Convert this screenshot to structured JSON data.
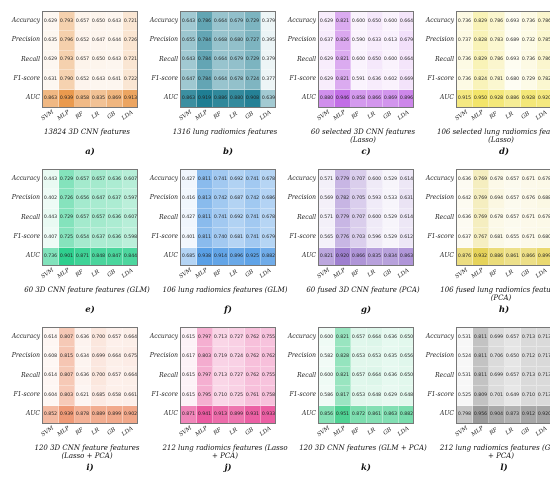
{
  "chart_data": {
    "type": "heatmap",
    "rows": [
      "Accuracy",
      "Precision",
      "Recall",
      "F1-score",
      "AUC"
    ],
    "columns": [
      "SVM",
      "MLP",
      "RF",
      "LR",
      "GB",
      "LDA"
    ],
    "panels": [
      {
        "id": "a",
        "letter": "a)",
        "caption": "13824 3D CNN features",
        "color": "#ea9a4e",
        "values": [
          [
            0.629,
            0.793,
            0.657,
            0.65,
            0.643,
            0.721
          ],
          [
            0.635,
            0.796,
            0.652,
            0.647,
            0.644,
            0.726
          ],
          [
            0.629,
            0.793,
            0.657,
            0.65,
            0.643,
            0.721
          ],
          [
            0.631,
            0.79,
            0.652,
            0.643,
            0.641,
            0.722
          ],
          [
            0.863,
            0.939,
            0.858,
            0.835,
            0.869,
            0.913
          ]
        ]
      },
      {
        "id": "b",
        "letter": "b)",
        "caption": "1316 lung radiomics features",
        "color": "#1f7e93",
        "values": [
          [
            0.643,
            0.786,
            0.664,
            0.679,
            0.729,
            0.379
          ],
          [
            0.655,
            0.784,
            0.668,
            0.68,
            0.727,
            0.395
          ],
          [
            0.643,
            0.784,
            0.664,
            0.679,
            0.729,
            0.379
          ],
          [
            0.647,
            0.784,
            0.664,
            0.678,
            0.724,
            0.377
          ],
          [
            0.863,
            0.919,
            0.886,
            0.88,
            0.908,
            0.639
          ]
        ]
      },
      {
        "id": "c",
        "letter": "c)",
        "caption": "60 selected 3D CNN features (Lasso)",
        "color": "#c26ee6",
        "values": [
          [
            0.629,
            0.821,
            0.6,
            0.65,
            0.6,
            0.664
          ],
          [
            0.637,
            0.826,
            0.59,
            0.633,
            0.613,
            0.679
          ],
          [
            0.629,
            0.821,
            0.6,
            0.65,
            0.6,
            0.664
          ],
          [
            0.629,
            0.821,
            0.591,
            0.636,
            0.602,
            0.669
          ],
          [
            0.88,
            0.946,
            0.858,
            0.866,
            0.869,
            0.896
          ]
        ]
      },
      {
        "id": "d",
        "letter": "d)",
        "caption": "106 selected lung radiomics feature (Lasso)",
        "color": "#f3e56a",
        "values": [
          [
            0.736,
            0.829,
            0.786,
            0.693,
            0.736,
            0.786
          ],
          [
            0.737,
            0.828,
            0.783,
            0.689,
            0.732,
            0.785
          ],
          [
            0.736,
            0.829,
            0.786,
            0.693,
            0.736,
            0.786
          ],
          [
            0.736,
            0.824,
            0.781,
            0.68,
            0.729,
            0.782
          ],
          [
            0.915,
            0.95,
            0.928,
            0.886,
            0.928,
            0.92
          ]
        ]
      },
      {
        "id": "e",
        "letter": "e)",
        "caption": "60 3D CNN feature features (GLM)",
        "color": "#2fcf8e",
        "values": [
          [
            0.443,
            0.729,
            0.657,
            0.657,
            0.636,
            0.607
          ],
          [
            0.402,
            0.726,
            0.656,
            0.647,
            0.637,
            0.597
          ],
          [
            0.443,
            0.729,
            0.657,
            0.657,
            0.636,
            0.607
          ],
          [
            0.407,
            0.725,
            0.654,
            0.637,
            0.636,
            0.598
          ],
          [
            0.736,
            0.901,
            0.871,
            0.848,
            0.847,
            0.844
          ]
        ]
      },
      {
        "id": "f",
        "letter": "f)",
        "caption": "106 lung radiomics features (GLM)",
        "color": "#5aa0e6",
        "values": [
          [
            0.427,
            0.811,
            0.741,
            0.692,
            0.741,
            0.678
          ],
          [
            0.416,
            0.813,
            0.742,
            0.687,
            0.742,
            0.686
          ],
          [
            0.427,
            0.811,
            0.741,
            0.692,
            0.741,
            0.678
          ],
          [
            0.401,
            0.811,
            0.74,
            0.681,
            0.741,
            0.679
          ],
          [
            0.685,
            0.938,
            0.914,
            0.896,
            0.925,
            0.882
          ]
        ]
      },
      {
        "id": "g",
        "letter": "g)",
        "caption": "60 fused 3D CNN feature (PCA)",
        "color": "#9e7fcf",
        "values": [
          [
            0.571,
            0.779,
            0.707,
            0.6,
            0.529,
            0.614
          ],
          [
            0.569,
            0.782,
            0.705,
            0.593,
            0.533,
            0.631
          ],
          [
            0.571,
            0.779,
            0.707,
            0.6,
            0.529,
            0.614
          ],
          [
            0.565,
            0.776,
            0.703,
            0.596,
            0.529,
            0.612
          ],
          [
            0.821,
            0.92,
            0.866,
            0.835,
            0.834,
            0.863
          ]
        ]
      },
      {
        "id": "h",
        "letter": "h)",
        "caption": "106 fused lung radiomics features (PCA)",
        "color": "#e6d35a",
        "values": [
          [
            0.636,
            0.769,
            0.678,
            0.657,
            0.671,
            0.678
          ],
          [
            0.642,
            0.769,
            0.694,
            0.657,
            0.676,
            0.688
          ],
          [
            0.636,
            0.769,
            0.678,
            0.657,
            0.671,
            0.678
          ],
          [
            0.637,
            0.767,
            0.681,
            0.655,
            0.671,
            0.68
          ],
          [
            0.876,
            0.932,
            0.886,
            0.861,
            0.866,
            0.899
          ]
        ]
      },
      {
        "id": "i",
        "letter": "i)",
        "caption": "120 3D CNN feature features (Lasso + PCA)",
        "color": "#ef9a77",
        "values": [
          [
            0.614,
            0.807,
            0.636,
            0.7,
            0.657,
            0.664
          ],
          [
            0.608,
            0.815,
            0.634,
            0.699,
            0.664,
            0.675
          ],
          [
            0.614,
            0.807,
            0.636,
            0.7,
            0.657,
            0.664
          ],
          [
            0.604,
            0.803,
            0.621,
            0.685,
            0.658,
            0.661
          ],
          [
            0.852,
            0.939,
            0.878,
            0.889,
            0.899,
            0.902
          ]
        ]
      },
      {
        "id": "j",
        "letter": "j)",
        "caption": "212 lung radiomics features (Lasso + PCA)",
        "color": "#ea5aa0",
        "values": [
          [
            0.615,
            0.797,
            0.713,
            0.727,
            0.762,
            0.755
          ],
          [
            0.617,
            0.803,
            0.719,
            0.724,
            0.762,
            0.762
          ],
          [
            0.615,
            0.797,
            0.713,
            0.727,
            0.762,
            0.755
          ],
          [
            0.615,
            0.795,
            0.71,
            0.725,
            0.761,
            0.758
          ],
          [
            0.871,
            0.941,
            0.913,
            0.899,
            0.931,
            0.933
          ]
        ]
      },
      {
        "id": "k",
        "letter": "k)",
        "caption": "120 3D CNN features (GLM + PCA)",
        "color": "#4fd293",
        "values": [
          [
            0.6,
            0.821,
            0.657,
            0.664,
            0.636,
            0.65
          ],
          [
            0.582,
            0.828,
            0.653,
            0.653,
            0.635,
            0.656
          ],
          [
            0.6,
            0.821,
            0.657,
            0.664,
            0.636,
            0.65
          ],
          [
            0.586,
            0.817,
            0.653,
            0.648,
            0.629,
            0.648
          ],
          [
            0.856,
            0.951,
            0.872,
            0.861,
            0.863,
            0.882
          ]
        ]
      },
      {
        "id": "l",
        "letter": "l)",
        "caption": "212 lung radiomics features (GLM + PCA)",
        "color": "#9a9a9a",
        "values": [
          [
            0.531,
            0.811,
            0.699,
            0.657,
            0.713,
            0.713
          ],
          [
            0.524,
            0.811,
            0.706,
            0.65,
            0.712,
            0.717
          ],
          [
            0.531,
            0.811,
            0.699,
            0.657,
            0.713,
            0.713
          ],
          [
            0.525,
            0.809,
            0.701,
            0.649,
            0.71,
            0.713
          ],
          [
            0.798,
            0.956,
            0.904,
            0.873,
            0.912,
            0.92
          ]
        ]
      }
    ]
  }
}
